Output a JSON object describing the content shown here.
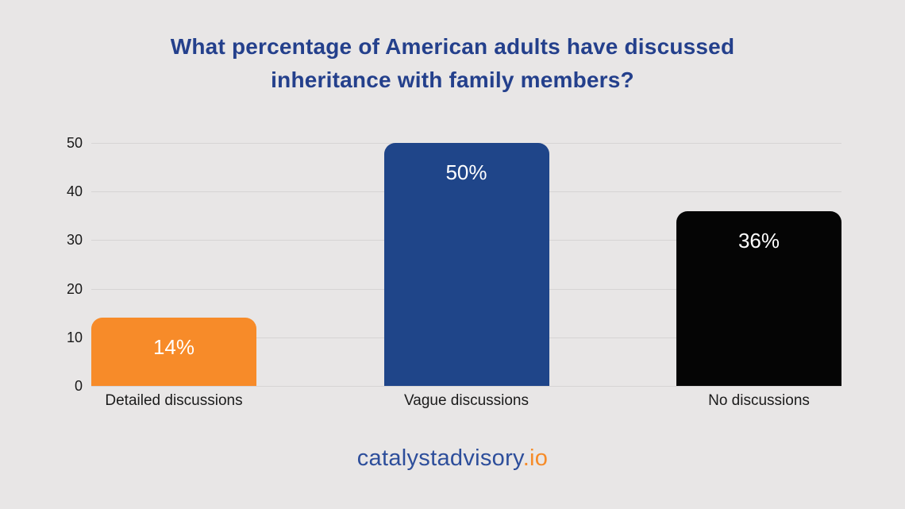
{
  "title": "What percentage of American adults have discussed inheritance with family members?",
  "footer": {
    "brand": "catalystadvisory",
    "tld": ".io",
    "brand_color": "#2d4e9b",
    "tld_color": "#f68b28"
  },
  "colors": {
    "background": "#e8e6e6",
    "title_text": "#24408c",
    "gridline": "#d6d4d4",
    "axis_text": "#191919",
    "value_label_text": "#ffffff"
  },
  "chart_data": {
    "type": "bar",
    "title": "What percentage of American adults have discussed inheritance with family members?",
    "categories": [
      "Detailed discussions",
      "Vague discussions",
      "No discussions"
    ],
    "values": [
      14,
      50,
      36
    ],
    "value_labels": [
      "14%",
      "50%",
      "36%"
    ],
    "bar_colors": [
      "#f78b29",
      "#1f4589",
      "#050505"
    ],
    "xlabel": "",
    "ylabel": "",
    "ylim": [
      0,
      50
    ],
    "yticks": [
      0,
      10,
      20,
      30,
      40,
      50
    ],
    "grid": "horizontal-only",
    "legend": "none"
  }
}
